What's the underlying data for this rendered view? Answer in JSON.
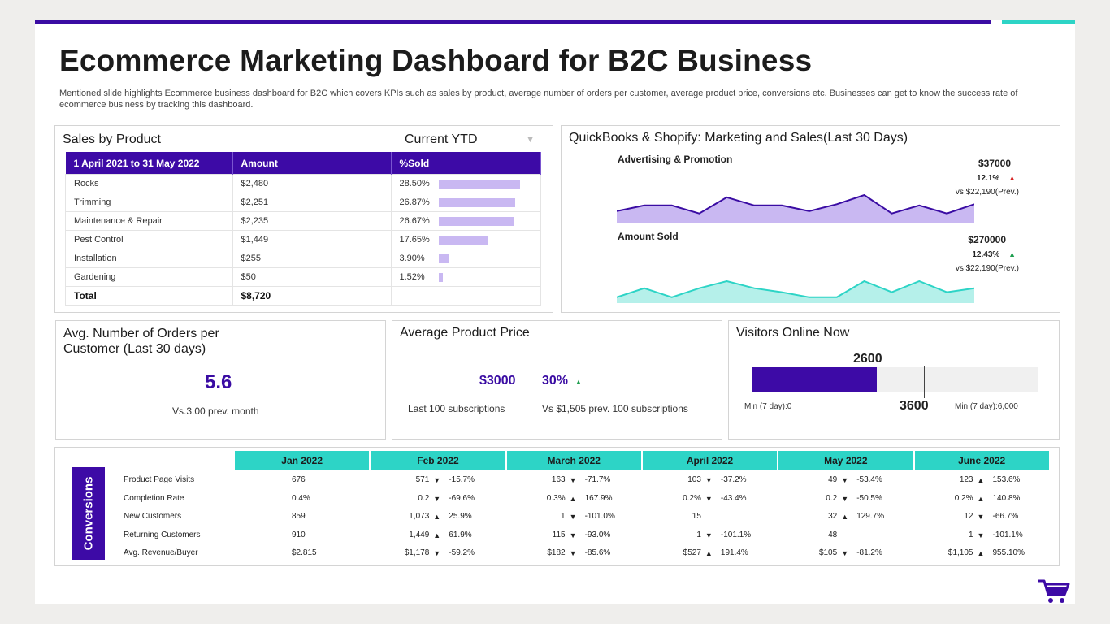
{
  "header": {
    "title": "Ecommerce Marketing Dashboard for B2C Business",
    "subtitle": "Mentioned slide highlights Ecommerce business dashboard for B2C which covers KPIs such as sales by product, average number of orders per customer, average product price, conversions etc. Businesses can get to know the success rate of ecommerce business by tracking this dashboard."
  },
  "sales": {
    "title": "Sales by Product",
    "filter_label": "Current YTD",
    "columns": [
      "1 April 2021 to 31 May 2022",
      "Amount",
      "%Sold"
    ],
    "rows": [
      {
        "product": "Rocks",
        "amount": "$2,480",
        "pct": "28.50%",
        "value": 28.5
      },
      {
        "product": "Trimming",
        "amount": "$2,251",
        "pct": "26.87%",
        "value": 26.87
      },
      {
        "product": "Maintenance & Repair",
        "amount": "$2,235",
        "pct": "26.67%",
        "value": 26.67
      },
      {
        "product": "Pest Control",
        "amount": "$1,449",
        "pct": "17.65%",
        "value": 17.65
      },
      {
        "product": "Installation",
        "amount": "$255",
        "pct": "3.90%",
        "value": 3.9
      },
      {
        "product": "Gardening",
        "amount": "$50",
        "pct": "1.52%",
        "value": 1.52
      }
    ],
    "total_label": "Total",
    "total_amount": "$8,720"
  },
  "quickbooks": {
    "title": "QuickBooks & Shopify: Marketing and Sales(Last 30 Days)",
    "advertising": {
      "label": "Advertising & Promotion",
      "value": "$37000",
      "change": "12.1%",
      "prev": "vs $22,190(Prev.)",
      "color": "#3a0ca3",
      "fill": "#c9b8f2",
      "series": [
        10,
        15,
        15,
        8,
        22,
        15,
        15,
        10,
        16,
        24,
        8,
        15,
        8,
        16
      ]
    },
    "amount_sold": {
      "label": "Amount Sold",
      "value": "$270000",
      "change": "12.43%",
      "prev": "vs $22,190(Prev.)",
      "color": "#2dd4c6",
      "fill": "#b5f0ea",
      "series": [
        5,
        14,
        5,
        14,
        21,
        14,
        10,
        5,
        5,
        21,
        10,
        21,
        10,
        14
      ]
    }
  },
  "orders": {
    "title_line1": "Avg. Number of Orders per",
    "title_line2": "Customer (Last 30 days)",
    "value": "5.6",
    "note": "Vs.3.00 prev.  month"
  },
  "price": {
    "title": "Average Product Price",
    "value": "$3000",
    "percent": "30%",
    "note_left": "Last 100 subscriptions",
    "note_right": "Vs $1,505 prev.  100 subscriptions"
  },
  "visitors": {
    "title": "Visitors Online Now",
    "current": "2600",
    "target": "3600",
    "min_label": "Min (7 day):0",
    "max_label": "Min (7 day):6,000",
    "current_value": 2600,
    "target_value": 3600,
    "max_value": 6000
  },
  "conversions": {
    "label": "Conversions",
    "months": [
      "Jan 2022",
      "Feb 2022",
      "March 2022",
      "April 2022",
      "May 2022",
      "June 2022"
    ],
    "rows": [
      {
        "label": "Product Page Visits",
        "cells": [
          {
            "v": "676",
            "d": "",
            "c": ""
          },
          {
            "v": "571",
            "d": "down",
            "c": "-15.7%"
          },
          {
            "v": "163",
            "d": "down",
            "c": "-71.7%"
          },
          {
            "v": "103",
            "d": "down",
            "c": "-37.2%"
          },
          {
            "v": "49",
            "d": "down",
            "c": "-53.4%"
          },
          {
            "v": "123",
            "d": "up",
            "c": "153.6%"
          }
        ]
      },
      {
        "label": "Completion  Rate",
        "cells": [
          {
            "v": "0.4%",
            "d": "",
            "c": ""
          },
          {
            "v": "0.2",
            "d": "down",
            "c": "-69.6%"
          },
          {
            "v": "0.3%",
            "d": "up",
            "c": "167.9%"
          },
          {
            "v": "0.2%",
            "d": "down",
            "c": "-43.4%"
          },
          {
            "v": "0.2",
            "d": "down",
            "c": "-50.5%"
          },
          {
            "v": "0.2%",
            "d": "up",
            "c": "140.8%"
          }
        ]
      },
      {
        "label": "New Customers",
        "cells": [
          {
            "v": "859",
            "d": "",
            "c": ""
          },
          {
            "v": "1,073",
            "d": "up",
            "c": "25.9%"
          },
          {
            "v": "1",
            "d": "down",
            "c": "-101.0%"
          },
          {
            "v": "15",
            "d": "",
            "c": ""
          },
          {
            "v": "32",
            "d": "up",
            "c": "129.7%"
          },
          {
            "v": "12",
            "d": "down",
            "c": "-66.7%"
          }
        ]
      },
      {
        "label": "Returning Customers",
        "cells": [
          {
            "v": "910",
            "d": "",
            "c": ""
          },
          {
            "v": "1,449",
            "d": "up",
            "c": "61.9%"
          },
          {
            "v": "115",
            "d": "down",
            "c": "-93.0%"
          },
          {
            "v": "1",
            "d": "down",
            "c": "-101.1%"
          },
          {
            "v": "48",
            "d": "",
            "c": ""
          },
          {
            "v": "1",
            "d": "down",
            "c": "-101.1%"
          }
        ]
      },
      {
        "label": "Avg. Revenue/Buyer",
        "cells": [
          {
            "v": "$2.815",
            "d": "",
            "c": ""
          },
          {
            "v": "$1,178",
            "d": "down",
            "c": "-59.2%"
          },
          {
            "v": "$182",
            "d": "down",
            "c": "-85.6%"
          },
          {
            "v": "$527",
            "d": "up",
            "c": "191.4%"
          },
          {
            "v": "$105",
            "d": "down",
            "c": "-81.2%"
          },
          {
            "v": "$1,105",
            "d": "up",
            "c": "955.10%"
          }
        ]
      }
    ]
  },
  "icons": {
    "cart": "cart-icon",
    "dropdown": "triangle-down-icon"
  }
}
